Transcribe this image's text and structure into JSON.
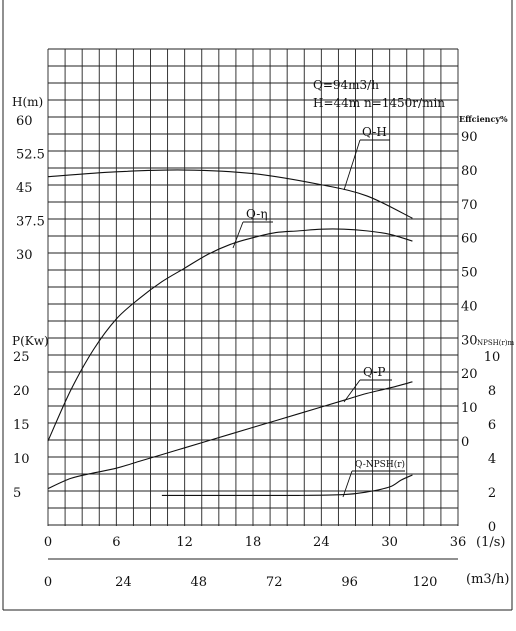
{
  "chart_data": {
    "type": "line",
    "info": {
      "line1": "Q=94m3/h",
      "line2": "H=44m  n=1450r/min"
    },
    "axes": {
      "head": {
        "label": "H(m)",
        "ticks": [
          "60",
          "52.5",
          "45",
          "37.5",
          "30"
        ]
      },
      "power": {
        "label": "P(Kw)",
        "ticks": [
          "25",
          "20",
          "15",
          "10",
          "5"
        ]
      },
      "efficiency": {
        "label": "Effciency%",
        "ticks": [
          "90",
          "80",
          "70",
          "60",
          "50",
          "40",
          "30",
          "20",
          "10",
          "0"
        ]
      },
      "npsh": {
        "label": "NPSH(r)m",
        "ticks": [
          "10",
          "8",
          "6",
          "4",
          "2",
          "0"
        ]
      },
      "flow_ls": {
        "label": "(1/s)",
        "ticks": [
          "0",
          "6",
          "12",
          "18",
          "24",
          "30",
          "36"
        ]
      },
      "flow_m3h": {
        "label": "(m3/h)",
        "ticks": [
          "0",
          "24",
          "48",
          "72",
          "96",
          "120"
        ]
      }
    },
    "series": [
      {
        "name": "Q-H",
        "unit": "m",
        "x_ls": [
          0,
          6,
          12,
          18,
          24,
          28,
          32
        ],
        "values": [
          47.3,
          48.4,
          48.8,
          48,
          45.5,
          43,
          38
        ]
      },
      {
        "name": "Q-η",
        "unit": "%",
        "x_ls": [
          0,
          2,
          4,
          6,
          8,
          10,
          12,
          14,
          16,
          18,
          20,
          22,
          24,
          26,
          28,
          30,
          32
        ],
        "values": [
          0,
          15,
          27,
          36,
          42,
          47,
          51,
          55,
          58,
          60,
          61.5,
          62,
          62.5,
          62.5,
          62,
          61,
          59
        ]
      },
      {
        "name": "Q-P",
        "unit": "Kw",
        "x_ls": [
          0,
          2,
          4,
          6,
          8,
          10,
          12,
          14,
          16,
          18,
          20,
          22,
          24,
          26,
          28,
          30,
          32
        ],
        "values": [
          5.5,
          7,
          7.8,
          8.5,
          9.5,
          10.5,
          11.5,
          12.5,
          13.5,
          14.5,
          15.5,
          16.5,
          17.5,
          18.5,
          19.5,
          20.3,
          21.2
        ]
      },
      {
        "name": "Q-NPSH(r)",
        "unit": "m",
        "x_ls": [
          10,
          14,
          18,
          22,
          26,
          28,
          30,
          31,
          32
        ],
        "values": [
          1.8,
          1.8,
          1.8,
          1.8,
          1.85,
          2,
          2.3,
          2.7,
          3
        ]
      }
    ]
  }
}
